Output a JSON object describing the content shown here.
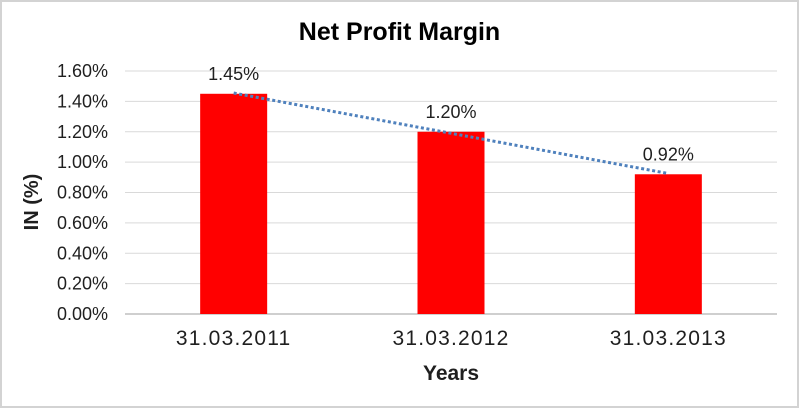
{
  "chart_data": {
    "type": "bar",
    "title": "Net Profit Margin",
    "xlabel": "Years",
    "ylabel": "IN (%)",
    "categories": [
      "31.03.2011",
      "31.03.2012",
      "31.03.2013"
    ],
    "series": [
      {
        "name": "Net Profit Margin",
        "values": [
          1.45,
          1.2,
          0.92
        ]
      }
    ],
    "data_labels": [
      "1.45%",
      "1.20%",
      "0.92%"
    ],
    "y_tick_labels": [
      "0.00%",
      "0.20%",
      "0.40%",
      "0.60%",
      "0.80%",
      "1.00%",
      "1.20%",
      "1.40%",
      "1.60%"
    ],
    "y_step": 0.2,
    "ylim": [
      0,
      1.6
    ],
    "grid": true,
    "legend": false,
    "trendline": {
      "type": "linear",
      "style": "dotted"
    },
    "colors": {
      "bar": "#ff0000",
      "trendline": "#4f81bd",
      "gridline": "#d9d9d9",
      "axis_line": "#bfbfbf",
      "text": "#1f1f1f",
      "title": "#000000"
    }
  }
}
